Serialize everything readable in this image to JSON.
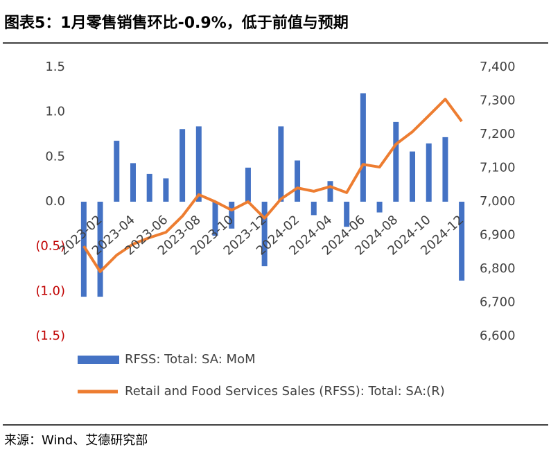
{
  "title": "图表5：1月零售销售环比-0.9%，低于前值与预期",
  "source": "来源：Wind、艾德研究部",
  "chart_data": {
    "type": "bar-line",
    "categories": [
      "2023-02",
      null,
      "2023-04",
      null,
      "2023-06",
      null,
      "2023-08",
      null,
      "2023-10",
      null,
      "2023-12",
      null,
      "2024-02",
      null,
      "2024-04",
      null,
      "2024-06",
      null,
      "2024-08",
      null,
      "2024-10",
      null,
      "2024-12",
      null
    ],
    "series": [
      {
        "name": "RFSS: Total: SA: MoM",
        "type": "bar",
        "color": "#4472c4",
        "values": [
          -1.06,
          -1.06,
          0.68,
          0.43,
          0.31,
          0.26,
          0.81,
          0.84,
          -0.38,
          -0.3,
          0.38,
          -0.72,
          0.84,
          0.46,
          -0.15,
          0.23,
          -0.28,
          1.21,
          -0.12,
          0.89,
          0.56,
          0.65,
          0.72,
          -0.88
        ]
      },
      {
        "name": "Retail and Food Services Sales (RFSS): Total: SA:(R)",
        "type": "line",
        "axis": "y2",
        "color": "#ed7d31",
        "values": [
          6868,
          6792,
          6841,
          6874,
          6893,
          6909,
          6957,
          7021,
          7000,
          6975,
          7000,
          6951,
          7008,
          7041,
          7031,
          7045,
          7027,
          7111,
          7103,
          7171,
          7208,
          7256,
          7305,
          7239
        ]
      }
    ],
    "ylim": [
      -1.5,
      1.5
    ],
    "yticks": [
      {
        "value": -1.5,
        "label": "(1.5)"
      },
      {
        "value": -1.0,
        "label": "(1.0)"
      },
      {
        "value": -0.5,
        "label": "(0.5)"
      },
      {
        "value": 0,
        "label": "0.0"
      },
      0.5,
      {
        "value": 1.0,
        "label": "1.0"
      },
      1.5
    ],
    "y2lim": [
      6600,
      7400
    ],
    "y2ticks": [
      {
        "value": 6600,
        "label": "6,600"
      },
      {
        "value": 6700,
        "label": "6,700"
      },
      {
        "value": 6800,
        "label": "6,800"
      },
      {
        "value": 6900,
        "label": "6,900"
      },
      {
        "value": 7000,
        "label": "7,000"
      },
      {
        "value": 7100,
        "label": "7,100"
      },
      {
        "value": 7200,
        "label": "7,200"
      },
      {
        "value": 7300,
        "label": "7,300"
      },
      {
        "value": 7400,
        "label": "7,400"
      }
    ],
    "negative_tick_color": "#c00000",
    "grid": false
  }
}
